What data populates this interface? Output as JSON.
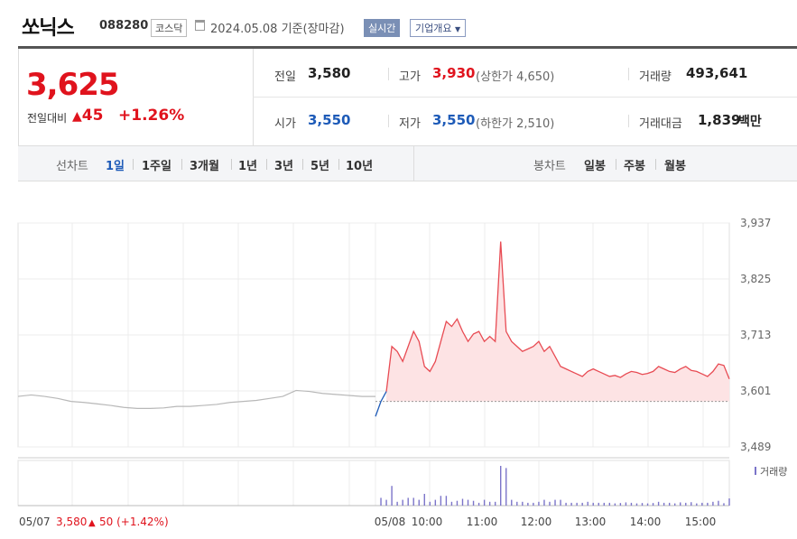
{
  "header": {
    "name": "쏘닉스",
    "code": "088280",
    "market": "코스닥",
    "date": "2024.05.08",
    "basis": "기준(장마감)",
    "realtime_btn": "실시간",
    "overview_btn": "기업개요"
  },
  "quote": {
    "price": "3,625",
    "change_label": "전일대비",
    "change": "45",
    "change_pct": "+1.26%",
    "prev_label": "전일",
    "prev": "3,580",
    "open_label": "시가",
    "open": "3,550",
    "high_label": "고가",
    "high": "3,930",
    "upper_limit": "(상한가 4,650)",
    "low_label": "저가",
    "low": "3,550",
    "lower_limit": "(하한가 2,510)",
    "volume_label": "거래량",
    "volume": "493,641",
    "value_label": "거래대금",
    "value": "1,839",
    "value_unit": "백만"
  },
  "tabs": {
    "line_label": "선차트",
    "line_items": [
      "1일",
      "1주일",
      "3개월",
      "1년",
      "3년",
      "5년",
      "10년"
    ],
    "active": "1일",
    "candle_label": "봉차트",
    "candle_items": [
      "일봉",
      "주봉",
      "월봉"
    ]
  },
  "chart_data": {
    "type": "line",
    "y_ticks": [
      "3,937",
      "3,825",
      "3,713",
      "3,601",
      "3,489"
    ],
    "ylim": [
      3489,
      3937
    ],
    "x_ticks": [
      "05/07",
      "05/08",
      "10:00",
      "11:00",
      "12:00",
      "13:00",
      "14:00",
      "15:00"
    ],
    "prev_close": 3580,
    "prev_day_series": [
      3590,
      3593,
      3590,
      3586,
      3580,
      3578,
      3575,
      3572,
      3568,
      3566,
      3566,
      3567,
      3570,
      3570,
      3572,
      3574,
      3578,
      3580,
      3582,
      3586,
      3590,
      3602,
      3600,
      3596,
      3594,
      3592,
      3590,
      3590
    ],
    "today_series": [
      3550,
      3580,
      3600,
      3690,
      3680,
      3660,
      3690,
      3720,
      3700,
      3650,
      3640,
      3660,
      3700,
      3740,
      3730,
      3745,
      3720,
      3700,
      3715,
      3720,
      3700,
      3710,
      3700,
      3900,
      3720,
      3700,
      3690,
      3680,
      3685,
      3690,
      3700,
      3680,
      3690,
      3670,
      3650,
      3645,
      3640,
      3635,
      3630,
      3640,
      3645,
      3640,
      3635,
      3630,
      3632,
      3628,
      3635,
      3640,
      3638,
      3634,
      3636,
      3640,
      3650,
      3645,
      3640,
      3638,
      3645,
      3650,
      3642,
      3640,
      3635,
      3630,
      3640,
      3655,
      3652,
      3625
    ],
    "volume_legend": "거래량",
    "footer_prev": {
      "date": "05/07",
      "price": "3,580",
      "change": "50",
      "pct": "(+1.42%)"
    }
  },
  "colors": {
    "up": "#e0131d",
    "down": "#1e5bb8",
    "line_today": "#e84b53",
    "fill_today": "#fde3e4",
    "line_prev": "#b8b8b8",
    "volume": "#7b74c9"
  }
}
